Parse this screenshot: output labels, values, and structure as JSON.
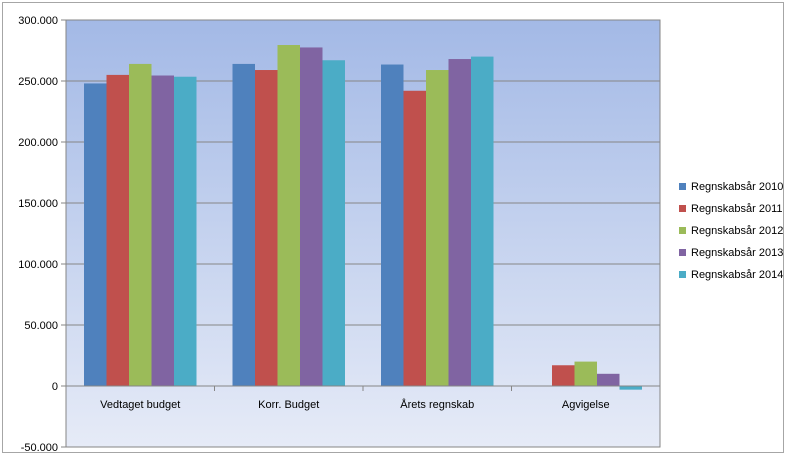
{
  "chart_data": {
    "type": "bar",
    "categories": [
      "Vedtaget budget",
      "Korr. Budget",
      "Årets regnskab",
      "Agvigelse"
    ],
    "series": [
      {
        "name": "Regnskabsår 2010",
        "color": "#4f81bd",
        "values": [
          248000,
          264000,
          263500,
          0
        ]
      },
      {
        "name": "Regnskabsår 2011",
        "color": "#c0504d",
        "values": [
          255000,
          259000,
          242000,
          17000
        ]
      },
      {
        "name": "Regnskabsår 2012",
        "color": "#9bbb59",
        "values": [
          264000,
          279500,
          259000,
          20000
        ]
      },
      {
        "name": "Regnskabsår 2013",
        "color": "#8064a2",
        "values": [
          254500,
          277500,
          268000,
          10000
        ]
      },
      {
        "name": "Regnskabsår 2014",
        "color": "#4bacc6",
        "values": [
          253500,
          267000,
          270000,
          -3000
        ]
      }
    ],
    "y_ticks": [
      "-50.000",
      "0",
      "50.000",
      "100.000",
      "150.000",
      "200.000",
      "250.000",
      "300.000"
    ],
    "ylim": [
      -50000,
      300000
    ],
    "grid": true,
    "legend_position": "right",
    "plot_background": [
      "#a3b9e6",
      "#e6ebf7"
    ]
  }
}
